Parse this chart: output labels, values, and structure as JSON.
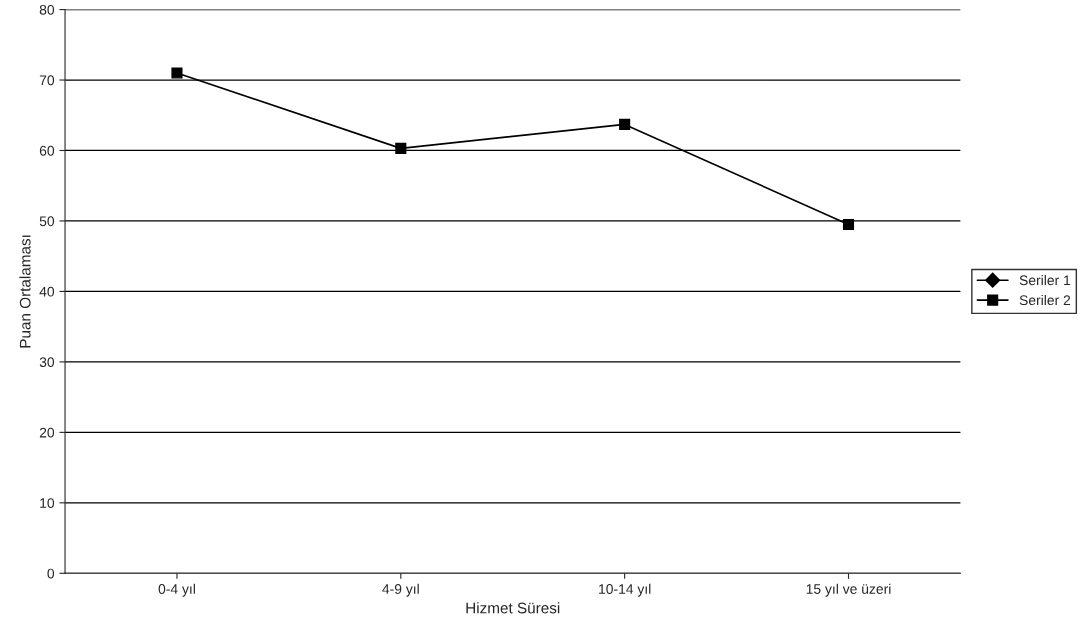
{
  "chart_data": {
    "type": "line",
    "xlabel": "Hizmet Süresi",
    "ylabel": "Puan Ortalaması",
    "categories": [
      "0-4 yıl",
      "4-9 yıl",
      "10-14 yıl",
      "15 yıl ve üzeri"
    ],
    "series": [
      {
        "name": "Seriler 1",
        "color": "#000000",
        "marker": "diamond",
        "values": [
          null,
          null,
          null,
          null
        ]
      },
      {
        "name": "Seriler 2",
        "color": "#000000",
        "marker": "square",
        "values": [
          71,
          60.3,
          63.7,
          49.5
        ]
      }
    ],
    "ylim": [
      0,
      80
    ],
    "yticks": [
      0,
      10,
      20,
      30,
      40,
      50,
      60,
      70,
      80
    ],
    "grid": "y",
    "legend": "right",
    "line_style": "solid"
  }
}
